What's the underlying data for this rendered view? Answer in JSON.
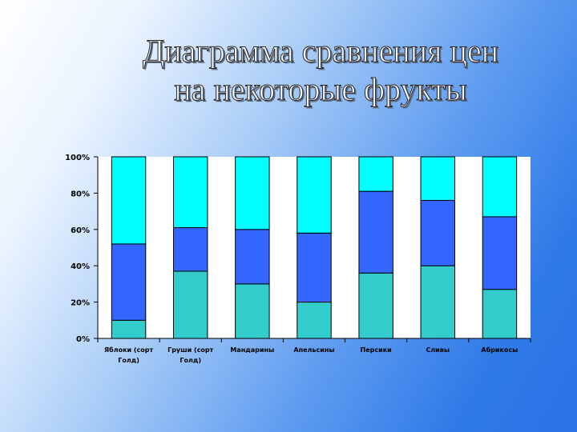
{
  "slide": {
    "title_line1": "Диаграмма сравнения цен",
    "title_line2": "на некоторые фрукты"
  },
  "chart_data": {
    "type": "bar",
    "stacked": "100%",
    "categories": [
      [
        "Яблоки (сорт",
        "Голд)"
      ],
      [
        "Груши (сорт",
        "Голд)"
      ],
      [
        "Мандарины"
      ],
      [
        "Апельсины"
      ],
      [
        "Персики"
      ],
      [
        "Сливы"
      ],
      [
        "Абрикосы"
      ]
    ],
    "series": [
      {
        "color": "#33cccc",
        "values": [
          10,
          37,
          30,
          20,
          36,
          40,
          27
        ]
      },
      {
        "color": "#3366ff",
        "values": [
          42,
          24,
          30,
          38,
          45,
          36,
          40
        ]
      },
      {
        "color": "#00ffff",
        "values": [
          48,
          39,
          40,
          42,
          19,
          24,
          33
        ]
      }
    ],
    "yticks": [
      "0%",
      "20%",
      "40%",
      "60%",
      "80%",
      "100%"
    ],
    "ylim": [
      0,
      100
    ],
    "grid": false,
    "legend": "none"
  }
}
